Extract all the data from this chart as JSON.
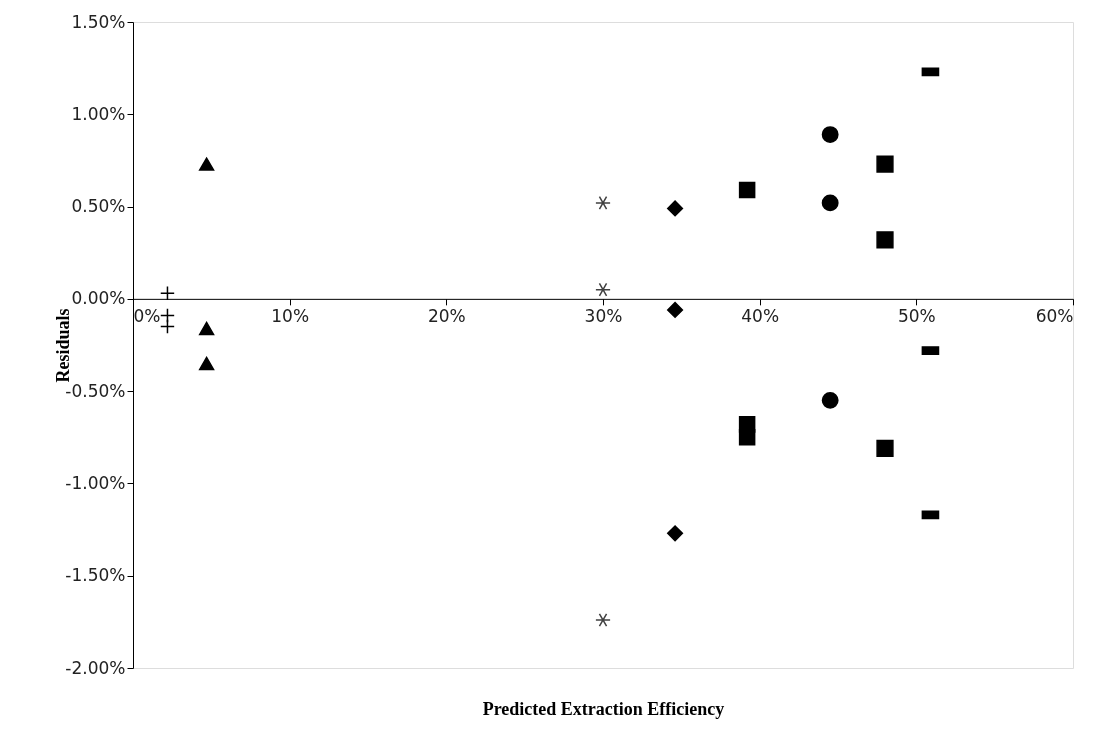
{
  "chart_data": {
    "type": "scatter",
    "xlabel": "Predicted Extraction Efficiency",
    "ylabel": "Residuals",
    "xlim": [
      0,
      60
    ],
    "ylim": [
      -2,
      1.5
    ],
    "xticks": [
      {
        "value": 0,
        "label": "0%"
      },
      {
        "value": 10,
        "label": "10%"
      },
      {
        "value": 20,
        "label": "20%"
      },
      {
        "value": 30,
        "label": "30%"
      },
      {
        "value": 40,
        "label": "40%"
      },
      {
        "value": 50,
        "label": "50%"
      },
      {
        "value": 60,
        "label": "60%"
      }
    ],
    "yticks": [
      {
        "value": -2,
        "label": "-2.00%"
      },
      {
        "value": -1.5,
        "label": "-1.50%"
      },
      {
        "value": -1,
        "label": "-1.00%"
      },
      {
        "value": -0.5,
        "label": "-0.50%"
      },
      {
        "value": 0,
        "label": "0.00%"
      },
      {
        "value": 0.5,
        "label": "0.50%"
      },
      {
        "value": 1,
        "label": "1.00%"
      },
      {
        "value": 1.5,
        "label": "1.50%"
      }
    ],
    "grid": false,
    "series": [
      {
        "color": "#000000",
        "marker": "cross",
        "x": [
          2.2,
          2.2,
          2.2
        ],
        "values": [
          0.03,
          -0.09,
          -0.15
        ]
      },
      {
        "color": "#000000",
        "marker": "triangle",
        "x": [
          4.7,
          4.7,
          4.7
        ],
        "values": [
          0.73,
          -0.16,
          -0.35
        ]
      },
      {
        "color": "#404040",
        "marker": "cross",
        "x": [
          30,
          30,
          30
        ],
        "values": [
          0.52,
          0.05,
          -1.74
        ]
      },
      {
        "color": "#000000",
        "marker": "diamond",
        "x": [
          34.6,
          34.6,
          34.6
        ],
        "values": [
          0.49,
          -0.06,
          -1.27
        ]
      },
      {
        "color": "#000000",
        "marker": "square",
        "x": [
          39.2,
          39.2,
          39.2
        ],
        "values": [
          0.59,
          -0.68,
          -0.75
        ]
      },
      {
        "color": "#000000",
        "marker": "circle",
        "x": [
          44.5,
          44.5,
          44.5
        ],
        "values": [
          0.89,
          0.52,
          -0.55
        ]
      },
      {
        "color": "#000000",
        "marker": "square",
        "x": [
          48,
          48,
          48
        ],
        "values": [
          0.73,
          0.32,
          -0.81
        ]
      },
      {
        "color": "#000000",
        "marker": "square",
        "x": [
          50.9,
          50.9,
          50.9
        ],
        "values": [
          1.23,
          -0.28,
          -1.17
        ]
      }
    ]
  }
}
